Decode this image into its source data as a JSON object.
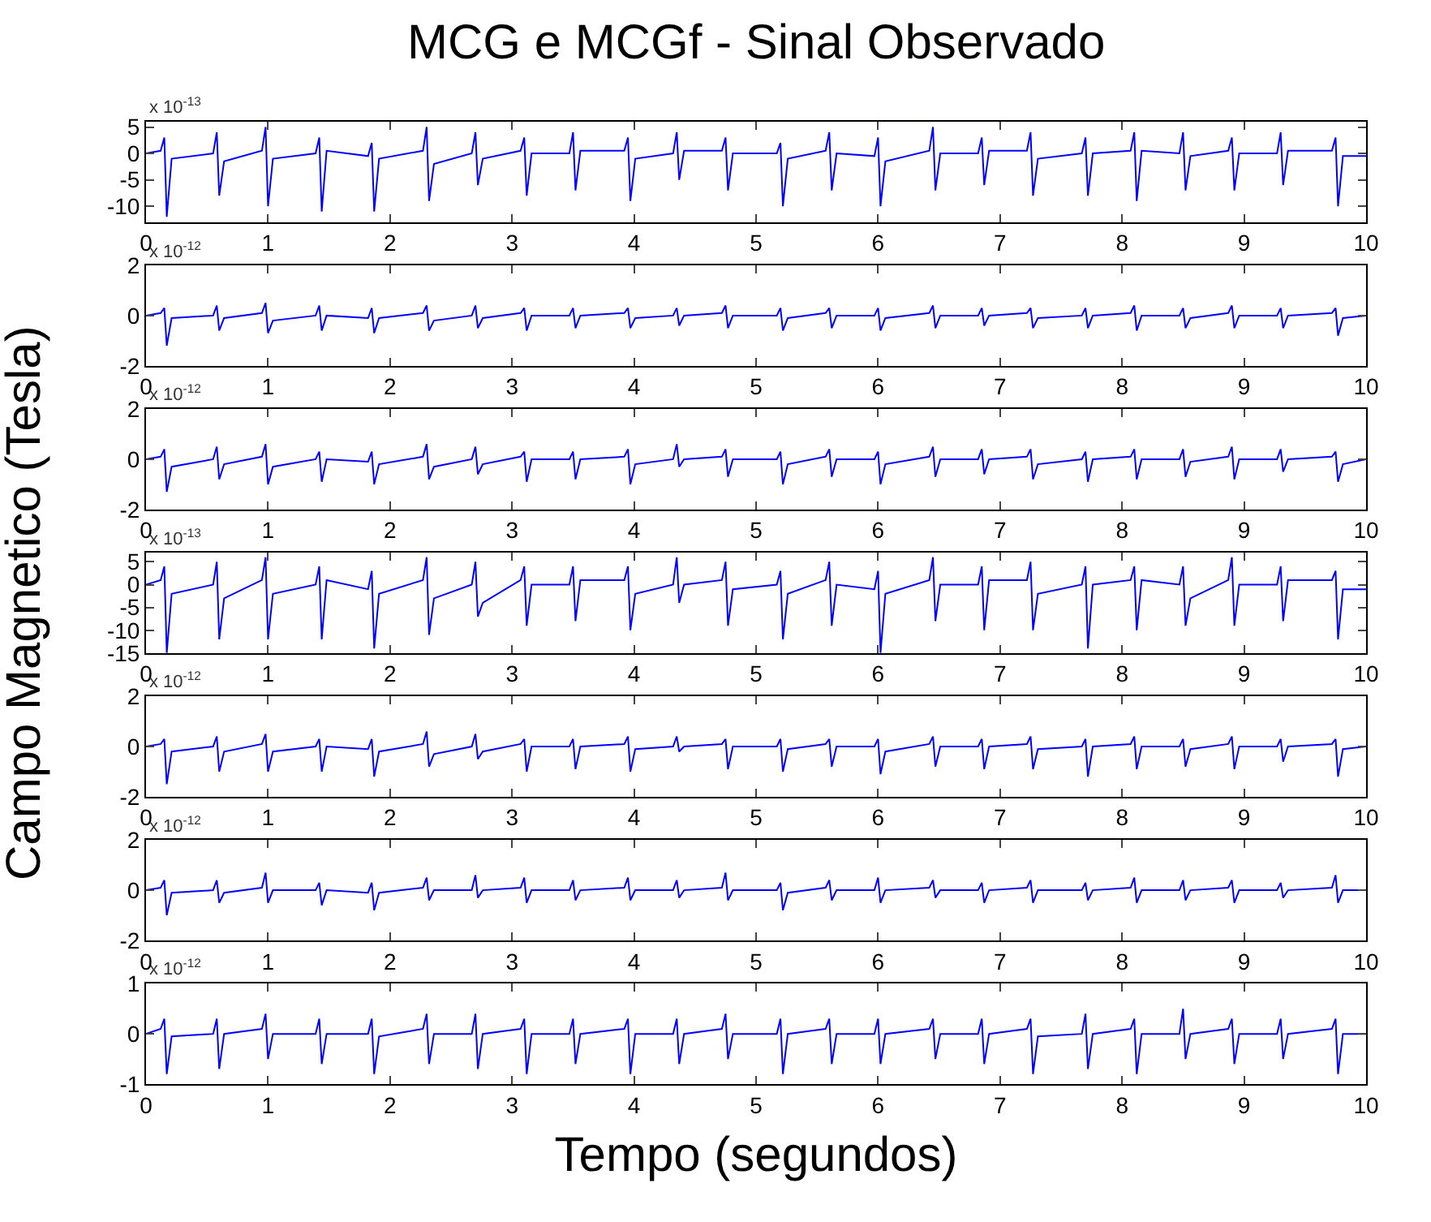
{
  "chart_data": [
    {
      "type": "line",
      "title": "MCG e MCGf - Sinal Observado",
      "annotations": [
        "x 10$^{-13}$"
      ],
      "x": [
        0,
        0.12,
        0.15,
        0.17,
        0.21,
        0.55,
        0.58,
        0.6,
        0.64,
        0.95,
        0.98,
        1.0,
        1.04,
        1.39,
        1.42,
        1.44,
        1.48,
        1.82,
        1.85,
        1.87,
        1.91,
        2.27,
        2.3,
        2.32,
        2.36,
        2.67,
        2.7,
        2.72,
        2.76,
        3.07,
        3.1,
        3.12,
        3.16,
        3.47,
        3.5,
        3.52,
        3.56,
        3.92,
        3.95,
        3.97,
        4.01,
        4.32,
        4.35,
        4.37,
        4.41,
        4.72,
        4.75,
        4.77,
        4.81,
        5.17,
        5.2,
        5.22,
        5.26,
        5.57,
        5.6,
        5.62,
        5.66,
        5.97,
        6.0,
        6.02,
        6.06,
        6.42,
        6.45,
        6.47,
        6.51,
        6.82,
        6.85,
        6.87,
        6.91,
        7.22,
        7.25,
        7.27,
        7.31,
        7.67,
        7.7,
        7.72,
        7.76,
        8.07,
        8.1,
        8.12,
        8.16,
        8.47,
        8.5,
        8.52,
        8.56,
        8.87,
        8.9,
        8.92,
        8.96,
        9.27,
        9.3,
        9.32,
        9.36,
        9.72,
        9.75,
        9.77,
        9.81,
        10
      ],
      "series": [
        {
          "color": "#0000ff",
          "values": [
            0,
            0.5,
            3,
            -12,
            -1,
            0,
            4,
            -8,
            -1.5,
            0.5,
            5,
            -10,
            -1,
            0,
            3,
            -11,
            0.5,
            -0.5,
            2,
            -11,
            -1,
            0.5,
            5,
            -9,
            -2,
            0,
            4,
            -6,
            -1,
            0.5,
            3,
            -8,
            0,
            0,
            4,
            -7,
            0.5,
            0.5,
            3,
            -9,
            -1,
            0,
            4,
            -5,
            0.5,
            0.5,
            3,
            -7,
            0,
            0,
            2,
            -10,
            -1,
            0.5,
            4,
            -7,
            0,
            -0.5,
            3,
            -10,
            -1.5,
            0.5,
            5,
            -7,
            0,
            0,
            3,
            -6,
            0.5,
            0.5,
            4,
            -8,
            -1,
            0,
            3,
            -8,
            0,
            0.5,
            4,
            -9,
            0.5,
            0,
            4,
            -7,
            -0.5,
            0.5,
            3,
            -7,
            0,
            0,
            4,
            -6,
            0.5,
            0.5,
            3,
            -10,
            -0.5,
            -0.5
          ]
        }
      ],
      "xlim": [
        0,
        10
      ],
      "xticks": [
        0,
        1,
        2,
        3,
        4,
        5,
        6,
        7,
        8,
        9,
        10
      ],
      "ylim": [
        -13,
        6
      ],
      "yticks": [
        -10,
        -5,
        0,
        5
      ]
    },
    {
      "type": "line",
      "annotations": [
        "x 10$^{-12}$"
      ],
      "x": [
        0,
        0.12,
        0.15,
        0.17,
        0.21,
        0.55,
        0.58,
        0.6,
        0.64,
        0.95,
        0.98,
        1.0,
        1.04,
        1.39,
        1.42,
        1.44,
        1.48,
        1.82,
        1.85,
        1.87,
        1.91,
        2.27,
        2.3,
        2.32,
        2.36,
        2.67,
        2.7,
        2.72,
        2.76,
        3.07,
        3.1,
        3.12,
        3.16,
        3.47,
        3.5,
        3.52,
        3.56,
        3.92,
        3.95,
        3.97,
        4.01,
        4.32,
        4.35,
        4.37,
        4.41,
        4.72,
        4.75,
        4.77,
        4.81,
        5.17,
        5.2,
        5.22,
        5.26,
        5.57,
        5.6,
        5.62,
        5.66,
        5.97,
        6.0,
        6.02,
        6.06,
        6.42,
        6.45,
        6.47,
        6.51,
        6.82,
        6.85,
        6.87,
        6.91,
        7.22,
        7.25,
        7.27,
        7.31,
        7.67,
        7.7,
        7.72,
        7.76,
        8.07,
        8.1,
        8.12,
        8.16,
        8.47,
        8.5,
        8.52,
        8.56,
        8.87,
        8.9,
        8.92,
        8.96,
        9.27,
        9.3,
        9.32,
        9.36,
        9.72,
        9.75,
        9.77,
        9.81,
        10
      ],
      "series": [
        {
          "color": "#0000ff",
          "values": [
            0,
            0.1,
            0.3,
            -1.2,
            -0.1,
            0,
            0.4,
            -0.6,
            -0.1,
            0.1,
            0.5,
            -0.7,
            -0.2,
            0,
            0.4,
            -0.6,
            0,
            -0.1,
            0.3,
            -0.7,
            -0.1,
            0.1,
            0.4,
            -0.6,
            -0.2,
            0,
            0.4,
            -0.5,
            -0.1,
            0.1,
            0.3,
            -0.6,
            0,
            0,
            0.3,
            -0.5,
            0,
            0.1,
            0.3,
            -0.5,
            -0.1,
            0,
            0.3,
            -0.4,
            0,
            0.1,
            0.4,
            -0.5,
            0,
            0,
            0.3,
            -0.6,
            -0.1,
            0.1,
            0.3,
            -0.5,
            0,
            0,
            0.3,
            -0.6,
            -0.1,
            0.1,
            0.4,
            -0.5,
            0,
            0,
            0.3,
            -0.4,
            0,
            0.1,
            0.3,
            -0.5,
            -0.1,
            0,
            0.3,
            -0.5,
            0,
            0.1,
            0.4,
            -0.6,
            0,
            0,
            0.3,
            -0.5,
            -0.1,
            0.1,
            0.4,
            -0.5,
            0,
            0,
            0.3,
            -0.5,
            0,
            0.1,
            0.3,
            -0.8,
            -0.1,
            0
          ]
        }
      ],
      "xlim": [
        0,
        10
      ],
      "xticks": [
        0,
        1,
        2,
        3,
        4,
        5,
        6,
        7,
        8,
        9,
        10
      ],
      "ylim": [
        -2,
        2
      ],
      "yticks": [
        -2,
        0,
        2
      ]
    },
    {
      "type": "line",
      "annotations": [
        "x 10$^{-12}$"
      ],
      "x": [
        0,
        0.12,
        0.15,
        0.17,
        0.21,
        0.55,
        0.58,
        0.6,
        0.64,
        0.95,
        0.98,
        1.0,
        1.04,
        1.39,
        1.42,
        1.44,
        1.48,
        1.82,
        1.85,
        1.87,
        1.91,
        2.27,
        2.3,
        2.32,
        2.36,
        2.67,
        2.7,
        2.72,
        2.76,
        3.07,
        3.1,
        3.12,
        3.16,
        3.47,
        3.5,
        3.52,
        3.56,
        3.92,
        3.95,
        3.97,
        4.01,
        4.32,
        4.35,
        4.37,
        4.41,
        4.72,
        4.75,
        4.77,
        4.81,
        5.17,
        5.2,
        5.22,
        5.26,
        5.57,
        5.6,
        5.62,
        5.66,
        5.97,
        6.0,
        6.02,
        6.06,
        6.42,
        6.45,
        6.47,
        6.51,
        6.82,
        6.85,
        6.87,
        6.91,
        7.22,
        7.25,
        7.27,
        7.31,
        7.67,
        7.7,
        7.72,
        7.76,
        8.07,
        8.1,
        8.12,
        8.16,
        8.47,
        8.5,
        8.52,
        8.56,
        8.87,
        8.9,
        8.92,
        8.96,
        9.27,
        9.3,
        9.32,
        9.36,
        9.72,
        9.75,
        9.77,
        9.81,
        10
      ],
      "series": [
        {
          "color": "#0000ff",
          "values": [
            0,
            0.1,
            0.4,
            -1.3,
            -0.3,
            0,
            0.5,
            -0.8,
            -0.2,
            0.1,
            0.6,
            -1.0,
            -0.3,
            0,
            0.3,
            -0.9,
            0,
            -0.1,
            0.3,
            -1.0,
            -0.2,
            0.1,
            0.6,
            -0.8,
            -0.3,
            0,
            0.5,
            -0.6,
            -0.2,
            0.1,
            0.3,
            -0.9,
            0,
            0,
            0.3,
            -0.8,
            0,
            0.1,
            0.4,
            -1.0,
            -0.2,
            0,
            0.6,
            -0.3,
            0,
            0.1,
            0.4,
            -0.7,
            0,
            0,
            0.3,
            -1.0,
            -0.2,
            0.1,
            0.4,
            -0.7,
            0,
            0,
            0.3,
            -1.0,
            -0.2,
            0.1,
            0.5,
            -0.7,
            0,
            0,
            0.4,
            -0.6,
            0,
            0.1,
            0.4,
            -0.8,
            -0.2,
            0,
            0.3,
            -0.9,
            0,
            0.1,
            0.4,
            -0.8,
            0,
            0,
            0.4,
            -0.7,
            -0.1,
            0.1,
            0.5,
            -0.8,
            0,
            0,
            0.4,
            -0.5,
            0,
            0.1,
            0.3,
            -0.9,
            -0.2,
            0
          ]
        }
      ],
      "xlim": [
        0,
        10
      ],
      "xticks": [
        0,
        1,
        2,
        3,
        4,
        5,
        6,
        7,
        8,
        9,
        10
      ],
      "ylim": [
        -2,
        2
      ],
      "yticks": [
        -2,
        0,
        2
      ]
    },
    {
      "type": "line",
      "ylabel": "Campo Magnetico (Tesla)",
      "annotations": [
        "x 10$^{-13}$"
      ],
      "x": [
        0,
        0.12,
        0.15,
        0.17,
        0.21,
        0.55,
        0.58,
        0.6,
        0.64,
        0.95,
        0.98,
        1.0,
        1.04,
        1.39,
        1.42,
        1.44,
        1.48,
        1.82,
        1.85,
        1.87,
        1.91,
        2.27,
        2.3,
        2.32,
        2.36,
        2.67,
        2.7,
        2.72,
        2.76,
        3.07,
        3.1,
        3.12,
        3.16,
        3.47,
        3.5,
        3.52,
        3.56,
        3.92,
        3.95,
        3.97,
        4.01,
        4.32,
        4.35,
        4.37,
        4.41,
        4.72,
        4.75,
        4.77,
        4.81,
        5.17,
        5.2,
        5.22,
        5.26,
        5.57,
        5.6,
        5.62,
        5.66,
        5.97,
        6.0,
        6.02,
        6.06,
        6.42,
        6.45,
        6.47,
        6.51,
        6.82,
        6.85,
        6.87,
        6.91,
        7.22,
        7.25,
        7.27,
        7.31,
        7.67,
        7.7,
        7.72,
        7.76,
        8.07,
        8.1,
        8.12,
        8.16,
        8.47,
        8.5,
        8.52,
        8.56,
        8.87,
        8.9,
        8.92,
        8.96,
        9.27,
        9.3,
        9.32,
        9.36,
        9.72,
        9.75,
        9.77,
        9.81,
        10
      ],
      "series": [
        {
          "color": "#0000ff",
          "values": [
            0,
            1,
            4,
            -15,
            -2,
            0,
            5,
            -12,
            -3,
            1,
            6,
            -12,
            -2,
            0,
            4,
            -12,
            1,
            -1,
            3,
            -14,
            -2,
            1,
            6,
            -11,
            -3,
            0,
            5,
            -7,
            -4,
            1,
            4,
            -9,
            0,
            0,
            4,
            -8,
            1,
            1,
            4,
            -10,
            -2,
            0,
            6,
            -4,
            0,
            1,
            5,
            -9,
            -1,
            0,
            3,
            -12,
            -2,
            1,
            5,
            -9,
            0,
            -1,
            3,
            -15,
            -2,
            1,
            6,
            -8,
            0,
            0,
            4,
            -10,
            1,
            1,
            5,
            -10,
            -2,
            0,
            4,
            -14,
            0,
            1,
            4,
            -10,
            1,
            0,
            4,
            -9,
            -3,
            1,
            6,
            -9,
            0,
            0,
            4,
            -8,
            1,
            1,
            3,
            -12,
            -1,
            -1
          ]
        }
      ],
      "xlim": [
        0,
        10
      ],
      "xticks": [
        0,
        1,
        2,
        3,
        4,
        5,
        6,
        7,
        8,
        9,
        10
      ],
      "ylim": [
        -15,
        7
      ],
      "yticks": [
        -15,
        -10,
        -5,
        0,
        5
      ]
    },
    {
      "type": "line",
      "annotations": [
        "x 10$^{-12}$"
      ],
      "x": [
        0,
        0.12,
        0.15,
        0.17,
        0.21,
        0.55,
        0.58,
        0.6,
        0.64,
        0.95,
        0.98,
        1.0,
        1.04,
        1.39,
        1.42,
        1.44,
        1.48,
        1.82,
        1.85,
        1.87,
        1.91,
        2.27,
        2.3,
        2.32,
        2.36,
        2.67,
        2.7,
        2.72,
        2.76,
        3.07,
        3.1,
        3.12,
        3.16,
        3.47,
        3.5,
        3.52,
        3.56,
        3.92,
        3.95,
        3.97,
        4.01,
        4.32,
        4.35,
        4.37,
        4.41,
        4.72,
        4.75,
        4.77,
        4.81,
        5.17,
        5.2,
        5.22,
        5.26,
        5.57,
        5.6,
        5.62,
        5.66,
        5.97,
        6.0,
        6.02,
        6.06,
        6.42,
        6.45,
        6.47,
        6.51,
        6.82,
        6.85,
        6.87,
        6.91,
        7.22,
        7.25,
        7.27,
        7.31,
        7.67,
        7.7,
        7.72,
        7.76,
        8.07,
        8.1,
        8.12,
        8.16,
        8.47,
        8.5,
        8.52,
        8.56,
        8.87,
        8.9,
        8.92,
        8.96,
        9.27,
        9.3,
        9.32,
        9.36,
        9.72,
        9.75,
        9.77,
        9.81,
        10
      ],
      "series": [
        {
          "color": "#0000ff",
          "values": [
            0,
            0.1,
            0.3,
            -1.5,
            -0.2,
            0,
            0.4,
            -1.0,
            -0.2,
            0.1,
            0.5,
            -1.0,
            -0.2,
            0,
            0.3,
            -1.0,
            0,
            -0.1,
            0.3,
            -1.2,
            -0.2,
            0.1,
            0.6,
            -0.8,
            -0.3,
            0,
            0.5,
            -0.5,
            -0.2,
            0.1,
            0.3,
            -1.0,
            0,
            0,
            0.3,
            -0.9,
            0,
            0.1,
            0.4,
            -1.0,
            -0.1,
            0,
            0.4,
            -0.2,
            0,
            0.1,
            0.3,
            -0.9,
            0,
            0,
            0.3,
            -1.0,
            -0.1,
            0.1,
            0.3,
            -0.8,
            0,
            0,
            0.3,
            -1.1,
            -0.2,
            0.1,
            0.4,
            -0.8,
            0,
            0,
            0.3,
            -0.9,
            0,
            0.1,
            0.4,
            -0.9,
            -0.1,
            0,
            0.3,
            -1.2,
            0,
            0.1,
            0.4,
            -0.9,
            0,
            0,
            0.3,
            -0.8,
            -0.1,
            0.1,
            0.4,
            -0.9,
            0,
            0,
            0.3,
            -0.6,
            0,
            0.1,
            0.3,
            -1.2,
            -0.1,
            0
          ]
        }
      ],
      "xlim": [
        0,
        10
      ],
      "xticks": [
        0,
        1,
        2,
        3,
        4,
        5,
        6,
        7,
        8,
        9,
        10
      ],
      "ylim": [
        -2,
        2
      ],
      "yticks": [
        -2,
        0,
        2
      ]
    },
    {
      "type": "line",
      "annotations": [
        "x 10$^{-12}$"
      ],
      "x": [
        0,
        0.12,
        0.15,
        0.17,
        0.21,
        0.55,
        0.58,
        0.6,
        0.64,
        0.95,
        0.98,
        1.0,
        1.04,
        1.39,
        1.42,
        1.44,
        1.48,
        1.82,
        1.85,
        1.87,
        1.91,
        2.27,
        2.3,
        2.32,
        2.36,
        2.67,
        2.7,
        2.72,
        2.76,
        3.07,
        3.1,
        3.12,
        3.16,
        3.47,
        3.5,
        3.52,
        3.56,
        3.92,
        3.95,
        3.97,
        4.01,
        4.32,
        4.35,
        4.37,
        4.41,
        4.72,
        4.75,
        4.77,
        4.81,
        5.17,
        5.2,
        5.22,
        5.26,
        5.57,
        5.6,
        5.62,
        5.66,
        5.97,
        6.0,
        6.02,
        6.06,
        6.42,
        6.45,
        6.47,
        6.51,
        6.82,
        6.85,
        6.87,
        6.91,
        7.22,
        7.25,
        7.27,
        7.31,
        7.67,
        7.7,
        7.72,
        7.76,
        8.07,
        8.1,
        8.12,
        8.16,
        8.47,
        8.5,
        8.52,
        8.56,
        8.87,
        8.9,
        8.92,
        8.96,
        9.27,
        9.3,
        9.32,
        9.36,
        9.72,
        9.75,
        9.77,
        9.81,
        10
      ],
      "series": [
        {
          "color": "#0000ff",
          "values": [
            0,
            0.1,
            0.4,
            -1.0,
            -0.1,
            0,
            0.4,
            -0.5,
            -0.1,
            0.1,
            0.7,
            -0.5,
            0,
            0,
            0.3,
            -0.6,
            0,
            -0.1,
            0.3,
            -0.8,
            -0.1,
            0.1,
            0.5,
            -0.4,
            0,
            0,
            0.6,
            -0.3,
            0,
            0.1,
            0.5,
            -0.5,
            0,
            0,
            0.4,
            -0.4,
            0,
            0.1,
            0.5,
            -0.4,
            0,
            0,
            0.4,
            -0.3,
            0,
            0.1,
            0.7,
            -0.4,
            0,
            0,
            0.3,
            -0.8,
            -0.1,
            0.1,
            0.4,
            -0.4,
            0,
            0,
            0.5,
            -0.5,
            0,
            0.1,
            0.4,
            -0.3,
            0,
            0,
            0.3,
            -0.5,
            0,
            0.1,
            0.4,
            -0.5,
            0,
            0,
            0.3,
            -0.4,
            0,
            0.1,
            0.5,
            -0.5,
            0,
            0,
            0.4,
            -0.4,
            0,
            0.1,
            0.4,
            -0.5,
            0,
            0,
            0.3,
            -0.3,
            0,
            0.1,
            0.6,
            -0.5,
            0,
            0
          ]
        }
      ],
      "xlim": [
        0,
        10
      ],
      "xticks": [
        0,
        1,
        2,
        3,
        4,
        5,
        6,
        7,
        8,
        9,
        10
      ],
      "ylim": [
        -2,
        2
      ],
      "yticks": [
        -2,
        0,
        2
      ]
    },
    {
      "type": "line",
      "xlabel": "Tempo (segundos)",
      "annotations": [
        "x 10$^{-12}$"
      ],
      "x": [
        0,
        0.12,
        0.15,
        0.17,
        0.21,
        0.55,
        0.58,
        0.6,
        0.64,
        0.95,
        0.98,
        1.0,
        1.04,
        1.39,
        1.42,
        1.44,
        1.48,
        1.82,
        1.85,
        1.87,
        1.91,
        2.27,
        2.3,
        2.32,
        2.36,
        2.67,
        2.7,
        2.72,
        2.76,
        3.07,
        3.1,
        3.12,
        3.16,
        3.47,
        3.5,
        3.52,
        3.56,
        3.92,
        3.95,
        3.97,
        4.01,
        4.32,
        4.35,
        4.37,
        4.41,
        4.72,
        4.75,
        4.77,
        4.81,
        5.17,
        5.2,
        5.22,
        5.26,
        5.57,
        5.6,
        5.62,
        5.66,
        5.97,
        6.0,
        6.02,
        6.06,
        6.42,
        6.45,
        6.47,
        6.51,
        6.82,
        6.85,
        6.87,
        6.91,
        7.22,
        7.25,
        7.27,
        7.31,
        7.67,
        7.7,
        7.72,
        7.76,
        8.07,
        8.1,
        8.12,
        8.16,
        8.47,
        8.5,
        8.52,
        8.56,
        8.87,
        8.9,
        8.92,
        8.96,
        9.27,
        9.3,
        9.32,
        9.36,
        9.72,
        9.75,
        9.77,
        9.81,
        10
      ],
      "series": [
        {
          "color": "#0000ff",
          "values": [
            0,
            0.1,
            0.3,
            -0.8,
            -0.05,
            0,
            0.3,
            -0.7,
            0,
            0.1,
            0.4,
            -0.5,
            0,
            0,
            0.3,
            -0.6,
            0,
            0,
            0.3,
            -0.8,
            -0.05,
            0.1,
            0.4,
            -0.6,
            0,
            0,
            0.4,
            -0.7,
            0,
            0.1,
            0.3,
            -0.8,
            0,
            0,
            0.3,
            -0.6,
            0,
            0.1,
            0.3,
            -0.8,
            0,
            0,
            0.3,
            -0.6,
            0,
            0.1,
            0.4,
            -0.5,
            0,
            0,
            0.3,
            -0.8,
            0,
            0.1,
            0.3,
            -0.6,
            0,
            0,
            0.3,
            -0.6,
            0,
            0.1,
            0.3,
            -0.5,
            0,
            0,
            0.3,
            -0.6,
            0,
            0.1,
            0.3,
            -0.8,
            -0.05,
            0,
            0.4,
            -0.7,
            0,
            0.1,
            0.3,
            -0.8,
            0,
            0,
            0.5,
            -0.5,
            0,
            0.1,
            0.3,
            -0.6,
            0,
            0,
            0.3,
            -0.5,
            0,
            0.1,
            0.3,
            -0.8,
            0,
            0
          ]
        }
      ],
      "xlim": [
        0,
        10
      ],
      "xticks": [
        0,
        1,
        2,
        3,
        4,
        5,
        6,
        7,
        8,
        9,
        10
      ],
      "ylim": [
        -1,
        1
      ],
      "yticks": [
        -1,
        0,
        1
      ]
    }
  ]
}
